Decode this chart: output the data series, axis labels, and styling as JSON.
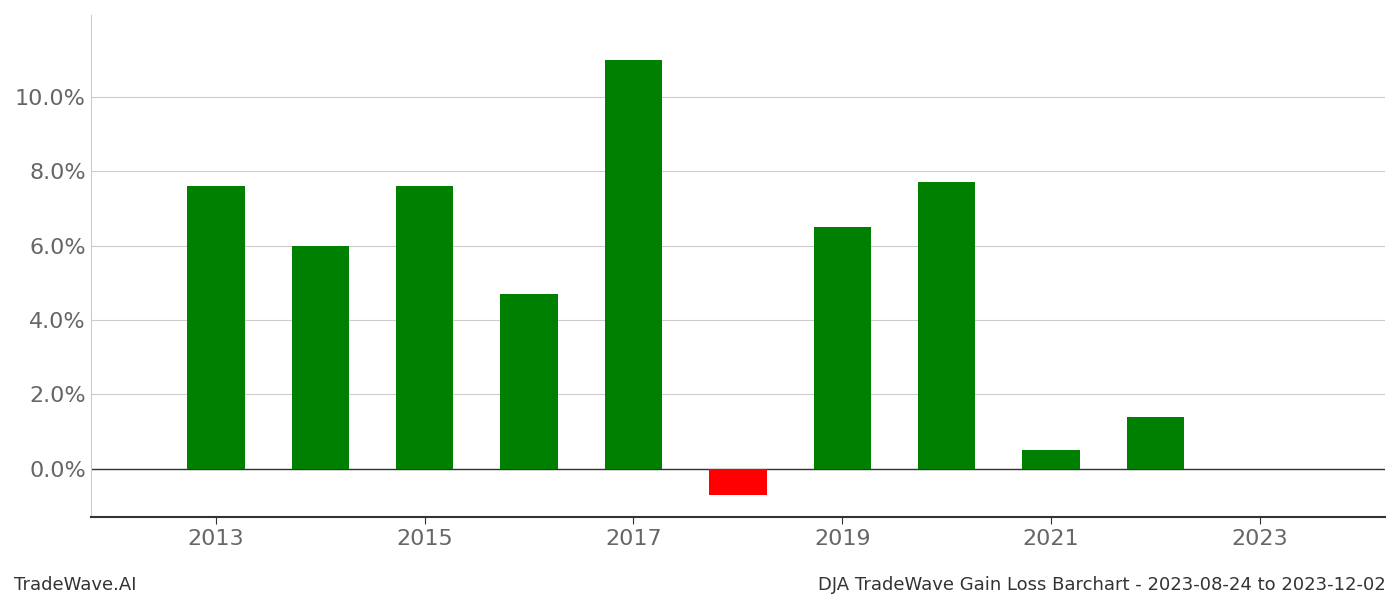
{
  "years": [
    2013,
    2014,
    2015,
    2016,
    2017,
    2018,
    2019,
    2020,
    2021,
    2022
  ],
  "values": [
    0.076,
    0.06,
    0.076,
    0.047,
    0.11,
    -0.007,
    0.065,
    0.077,
    0.005,
    0.014
  ],
  "bar_colors": [
    "#008000",
    "#008000",
    "#008000",
    "#008000",
    "#008000",
    "#ff0000",
    "#008000",
    "#008000",
    "#008000",
    "#008000"
  ],
  "footer_left": "TradeWave.AI",
  "footer_right": "DJA TradeWave Gain Loss Barchart - 2023-08-24 to 2023-12-02",
  "ylim_min": -0.013,
  "ylim_max": 0.122,
  "background_color": "#ffffff",
  "grid_color": "#cccccc",
  "xtick_labels": [
    "2013",
    "2015",
    "2017",
    "2019",
    "2021",
    "2023"
  ],
  "xtick_positions": [
    2013,
    2015,
    2017,
    2019,
    2021,
    2023
  ],
  "ytick_values": [
    0.0,
    0.02,
    0.04,
    0.06,
    0.08,
    0.1
  ],
  "footer_fontsize": 13,
  "tick_fontsize": 16,
  "bar_width": 0.55,
  "xlim_min": 2011.8,
  "xlim_max": 2024.2
}
